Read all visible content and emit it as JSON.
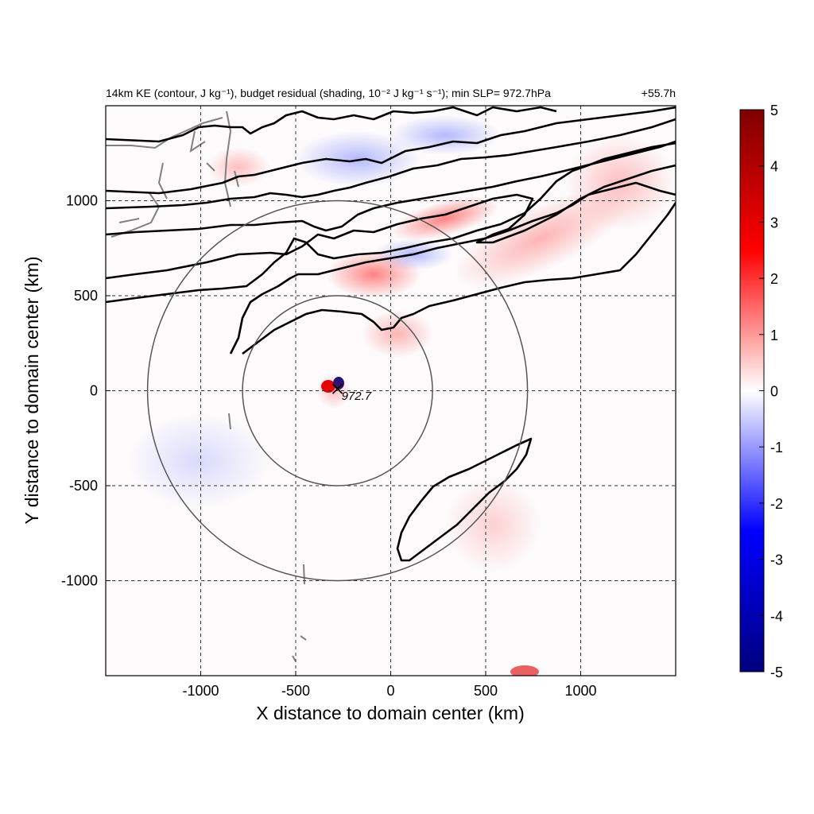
{
  "chart_data": {
    "type": "heatmap",
    "title": "14km KE (contour, J kg⁻¹), budget residual (shading, 10⁻² J kg⁻¹ s⁻¹); min SLP= 972.7hPa",
    "time_label": "+55.7h",
    "xlabel": "X distance to domain center (km)",
    "ylabel": "Y distance to domain center (km)",
    "xlim": [
      -1500,
      1500
    ],
    "ylim": [
      -1500,
      1500
    ],
    "x_ticks": [
      -1000,
      -500,
      0,
      500,
      1000
    ],
    "y_ticks": [
      1000,
      500,
      0,
      -500,
      -1000
    ],
    "x_tick_labels": [
      "-1000",
      "-500",
      "0",
      "500",
      "1000"
    ],
    "y_tick_labels": [
      "1000",
      "500",
      "0",
      "-500",
      "-1000"
    ],
    "grid": true,
    "colorbar": {
      "min": -5,
      "max": 5,
      "ticks": [
        5,
        4,
        3,
        2,
        1,
        0,
        -1,
        -2,
        -3,
        -4,
        -5
      ],
      "tick_labels": [
        "5",
        "4",
        "3",
        "2",
        "1",
        "0",
        "-1",
        "-2",
        "-3",
        "-4",
        "-5"
      ],
      "colors": {
        "low": "#00007f",
        "mid_low": "#0000ff",
        "zero": "#ffffff",
        "mid_high": "#ff0000",
        "high": "#7f0000"
      }
    },
    "center_marker": {
      "x": -280,
      "y": 10,
      "label": "972.7"
    },
    "range_circles": [
      {
        "cx": -280,
        "cy": 0,
        "r": 500
      },
      {
        "cx": -280,
        "cy": 0,
        "r": 1000
      }
    ]
  }
}
